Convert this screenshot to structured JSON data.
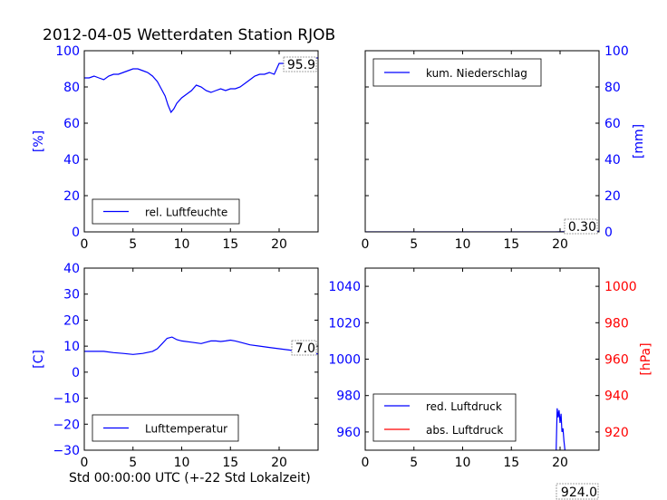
{
  "title": "2012-04-05 Wetterdaten Station RJOB",
  "chart_data": [
    {
      "type": "line",
      "xlim": [
        0,
        24
      ],
      "ylim": [
        0,
        100
      ],
      "xticks": [
        "0",
        "5",
        "10",
        "15",
        "20"
      ],
      "yticks": [
        "0",
        "20",
        "40",
        "60",
        "80",
        "100"
      ],
      "ylabel": "[%]",
      "xlabel": "",
      "legend": "lower-left",
      "last_value_label": "95.9",
      "series": [
        {
          "name": "rel. Luftfeuchte",
          "color": "#0000ff",
          "x": [
            0,
            0.5,
            1,
            1.5,
            2,
            2.5,
            3,
            3.5,
            4,
            4.5,
            5,
            5.5,
            6,
            6.5,
            7,
            7.5,
            8,
            8.3,
            8.6,
            8.9,
            9.2,
            9.5,
            10,
            10.5,
            11,
            11.5,
            12,
            12.5,
            13,
            13.5,
            14,
            14.5,
            15,
            15.5,
            16,
            16.5,
            17,
            17.5,
            18,
            18.5,
            19,
            19.5,
            20,
            20.5,
            21,
            21.5,
            22,
            22.5,
            23,
            23.5,
            24
          ],
          "y": [
            85,
            85,
            86,
            85,
            84,
            86,
            87,
            87,
            88,
            89,
            90,
            90,
            89,
            88,
            86,
            83,
            78,
            75,
            70,
            66,
            68,
            71,
            74,
            76,
            78,
            81,
            80,
            78,
            77,
            78,
            79,
            78,
            79,
            79,
            80,
            82,
            84,
            86,
            87,
            87,
            88,
            87,
            93,
            93,
            91,
            92,
            92,
            93,
            94,
            96,
            96
          ]
        }
      ]
    },
    {
      "type": "line",
      "xlim": [
        0,
        24
      ],
      "ylim": [
        0,
        100
      ],
      "xticks": [
        "0",
        "5",
        "10",
        "15",
        "20"
      ],
      "yticks": [
        "0",
        "20",
        "40",
        "60",
        "80",
        "100"
      ],
      "ylabel": "[mm]",
      "xlabel": "",
      "y_axis_side": "right",
      "legend": "top-left",
      "last_value_label": "0.30",
      "series": [
        {
          "name": "kum. Niederschlag",
          "color": "#0000ff",
          "x": [
            0,
            19.5,
            20,
            24
          ],
          "y": [
            0,
            0,
            0.1,
            0.3
          ]
        }
      ]
    },
    {
      "type": "line",
      "xlim": [
        0,
        24
      ],
      "ylim": [
        -30,
        40
      ],
      "xticks": [
        "0",
        "5",
        "10",
        "15",
        "20"
      ],
      "yticks": [
        "−30",
        "−20",
        "−10",
        "0",
        "10",
        "20",
        "30",
        "40"
      ],
      "ylabel": "[C]",
      "xlabel": "Std 00:00:00 UTC (+-22 Std Lokalzeit)",
      "legend": "lower-left",
      "last_value_label": "7.0",
      "series": [
        {
          "name": "Lufttemperatur",
          "color": "#0000ff",
          "x": [
            0,
            1,
            2,
            3,
            4,
            5,
            6,
            7,
            7.5,
            8,
            8.5,
            9,
            9.5,
            10,
            11,
            12,
            12.5,
            13,
            13.5,
            14,
            14.5,
            15,
            15.5,
            16,
            17,
            18,
            19,
            20,
            21,
            22,
            23,
            24
          ],
          "y": [
            8,
            8,
            8,
            7.5,
            7.2,
            6.8,
            7.2,
            8,
            9,
            11,
            13,
            13.5,
            12.5,
            12,
            11.5,
            11,
            11.5,
            12,
            12,
            11.8,
            12,
            12.3,
            12,
            11.5,
            10.5,
            10,
            9.5,
            9,
            8.5,
            8,
            7.5,
            7
          ]
        }
      ]
    },
    {
      "type": "line",
      "xlim": [
        0,
        24
      ],
      "ylim": [
        950,
        1050
      ],
      "xticks": [
        "0",
        "5",
        "10",
        "15",
        "20"
      ],
      "yticks": [
        "960",
        "980",
        "1000",
        "1020",
        "1040"
      ],
      "secondary_ylim": [
        910,
        1010
      ],
      "secondary_yticks": [
        "920",
        "940",
        "960",
        "980",
        "1000"
      ],
      "secondary_ylabel": "[hPa]",
      "xlabel": "",
      "legend": "lower-left",
      "last_value_label": "924.0",
      "series": [
        {
          "name": "red. Luftdruck",
          "color": "#0000ff",
          "x": [
            19.6,
            19.7,
            19.8,
            19.9,
            20.0,
            20.1,
            20.2,
            20.3,
            20.4,
            20.5
          ],
          "y": [
            950,
            973,
            968,
            972,
            965,
            970,
            960,
            962,
            955,
            950
          ]
        },
        {
          "name": "abs. Luftdruck",
          "color": "#ff0000",
          "x": [],
          "y": []
        }
      ]
    }
  ]
}
